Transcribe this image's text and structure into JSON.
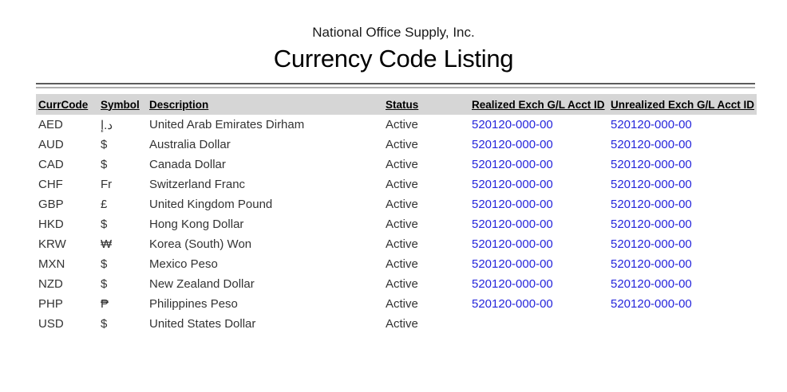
{
  "report": {
    "company": "National Office Supply, Inc.",
    "title": "Currency Code Listing"
  },
  "colors": {
    "account_link": "#2525db",
    "header_bar": "#d6d6d6",
    "rule_dark": "#5a5a5a",
    "rule_light": "#adadad",
    "body_text": "#333333"
  },
  "table": {
    "columns": [
      {
        "key": "code",
        "label": "CurrCode"
      },
      {
        "key": "symbol",
        "label": "Symbol"
      },
      {
        "key": "description",
        "label": "Description"
      },
      {
        "key": "status",
        "label": "Status"
      },
      {
        "key": "realized",
        "label": "Realized Exch G/L Acct ID"
      },
      {
        "key": "unrealized",
        "label": "Unrealized Exch G/L Acct ID"
      }
    ],
    "rows": [
      {
        "code": "AED",
        "symbol": "د.إ",
        "description": "United Arab Emirates Dirham",
        "status": "Active",
        "realized": "520120-000-00",
        "unrealized": "520120-000-00"
      },
      {
        "code": "AUD",
        "symbol": "$",
        "description": "Australia Dollar",
        "status": "Active",
        "realized": "520120-000-00",
        "unrealized": "520120-000-00"
      },
      {
        "code": "CAD",
        "symbol": "$",
        "description": "Canada Dollar",
        "status": "Active",
        "realized": "520120-000-00",
        "unrealized": "520120-000-00"
      },
      {
        "code": "CHF",
        "symbol": "Fr",
        "description": "Switzerland Franc",
        "status": "Active",
        "realized": "520120-000-00",
        "unrealized": "520120-000-00"
      },
      {
        "code": "GBP",
        "symbol": "£",
        "description": "United Kingdom Pound",
        "status": "Active",
        "realized": "520120-000-00",
        "unrealized": "520120-000-00"
      },
      {
        "code": "HKD",
        "symbol": "$",
        "description": "Hong Kong Dollar",
        "status": "Active",
        "realized": "520120-000-00",
        "unrealized": "520120-000-00"
      },
      {
        "code": "KRW",
        "symbol": "₩",
        "description": "Korea (South) Won",
        "status": "Active",
        "realized": "520120-000-00",
        "unrealized": "520120-000-00"
      },
      {
        "code": "MXN",
        "symbol": "$",
        "description": "Mexico Peso",
        "status": "Active",
        "realized": "520120-000-00",
        "unrealized": "520120-000-00"
      },
      {
        "code": "NZD",
        "symbol": "$",
        "description": "New Zealand Dollar",
        "status": "Active",
        "realized": "520120-000-00",
        "unrealized": "520120-000-00"
      },
      {
        "code": "PHP",
        "symbol": "₱",
        "description": "Philippines Peso",
        "status": "Active",
        "realized": "520120-000-00",
        "unrealized": "520120-000-00"
      },
      {
        "code": "USD",
        "symbol": "$",
        "description": "United States Dollar",
        "status": "Active",
        "realized": "",
        "unrealized": ""
      }
    ]
  }
}
